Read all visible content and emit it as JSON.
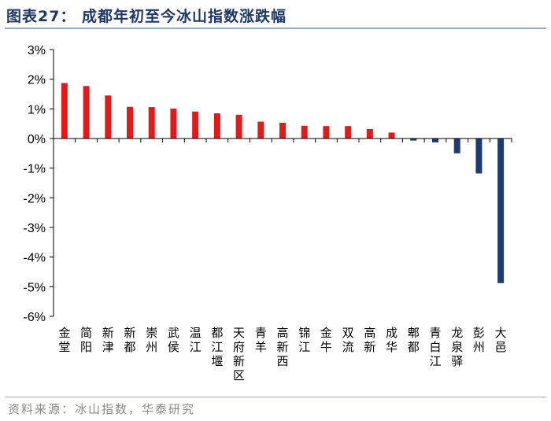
{
  "header": {
    "title": "图表27：  成都年初至今冰山指数涨跌幅"
  },
  "footer": {
    "source": "资料来源：冰山指数，华泰研究"
  },
  "chart_data": {
    "type": "bar",
    "title": "成都年初至今冰山指数涨跌幅",
    "xlabel": "",
    "ylabel": "",
    "ylim": [
      -6,
      3
    ],
    "yticks": [
      "3%",
      "2%",
      "1%",
      "0%",
      "-1%",
      "-2%",
      "-3%",
      "-4%",
      "-5%",
      "-6%"
    ],
    "grid": false,
    "colors": {
      "positive": "#e31a1c",
      "negative": "#1f3a70"
    },
    "categories": [
      "金堂",
      "简阳",
      "新津",
      "新都",
      "崇州",
      "武侯",
      "温江",
      "都江堰",
      "天府新区",
      "青羊",
      "高新西",
      "锦江",
      "金牛",
      "双流",
      "高新",
      "成华",
      "郫都",
      "青白江",
      "龙泉驿",
      "彭州",
      "大邑"
    ],
    "values": [
      1.87,
      1.77,
      1.45,
      1.07,
      1.06,
      1.01,
      0.91,
      0.85,
      0.8,
      0.57,
      0.53,
      0.43,
      0.42,
      0.42,
      0.32,
      0.2,
      -0.07,
      -0.13,
      -0.5,
      -1.18,
      -4.88
    ]
  }
}
